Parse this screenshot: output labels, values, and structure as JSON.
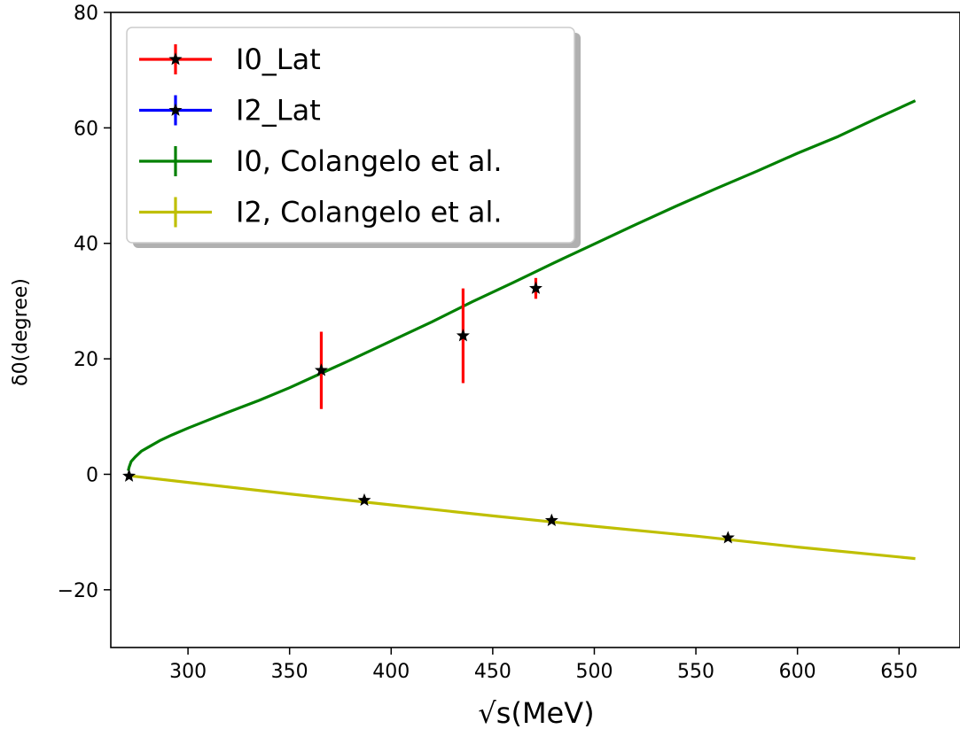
{
  "chart_data": {
    "type": "scatter",
    "xlabel": "√s(MeV)",
    "ylabel": "δ0(degree)",
    "xlim": [
      262,
      680
    ],
    "ylim": [
      -30,
      80
    ],
    "xticks": [
      "300",
      "350",
      "400",
      "450",
      "500",
      "550",
      "600",
      "650"
    ],
    "yticks": [
      "−20",
      "0",
      "20",
      "40",
      "60",
      "80"
    ],
    "grid": false,
    "legend_position": "top-left",
    "series": [
      {
        "name": "I0_Lat",
        "kind": "errorbar",
        "color": "#ff0000",
        "marker": "star",
        "points": [
          {
            "x": 365.6,
            "y": 18.0,
            "yerr": 6.7
          },
          {
            "x": 435.4,
            "y": 24.0,
            "yerr": 8.2
          },
          {
            "x": 471.2,
            "y": 32.2,
            "yerr": 1.8
          }
        ]
      },
      {
        "name": "I2_Lat",
        "kind": "errorbar",
        "color": "#0000ff",
        "marker": "star",
        "points": [
          {
            "x": 271.0,
            "y": -0.3,
            "yerr": 0.2
          },
          {
            "x": 386.8,
            "y": -4.5,
            "yerr": 0.4
          },
          {
            "x": 479.0,
            "y": -8.0,
            "yerr": 0.5
          },
          {
            "x": 565.8,
            "y": -11.0,
            "yerr": 0.4
          }
        ]
      },
      {
        "name": "I0, Colangelo et al.",
        "kind": "line",
        "color": "#008000",
        "x": [
          270.6,
          271,
          272,
          274,
          277,
          281,
          286,
          292,
          300,
          310,
          320,
          335,
          350,
          365,
          380,
          400,
          420,
          440,
          460,
          480,
          500,
          520,
          540,
          560,
          580,
          600,
          620,
          640,
          658
        ],
        "y": [
          0.6,
          1.2,
          2.2,
          3.0,
          4.0,
          4.8,
          5.8,
          6.8,
          8.0,
          9.4,
          10.8,
          12.8,
          15.0,
          17.4,
          19.8,
          23.1,
          26.4,
          29.9,
          33.2,
          36.6,
          39.9,
          43.2,
          46.4,
          49.5,
          52.5,
          55.6,
          58.5,
          61.8,
          64.7
        ]
      },
      {
        "name": "I2, Colangelo et al.",
        "kind": "line",
        "color": "#bfbf00",
        "x": [
          270.0,
          300,
          350,
          400,
          450,
          500,
          550,
          600,
          658
        ],
        "y": [
          -0.2,
          -1.4,
          -3.4,
          -5.3,
          -7.2,
          -9.0,
          -10.7,
          -12.6,
          -14.6
        ]
      }
    ]
  }
}
